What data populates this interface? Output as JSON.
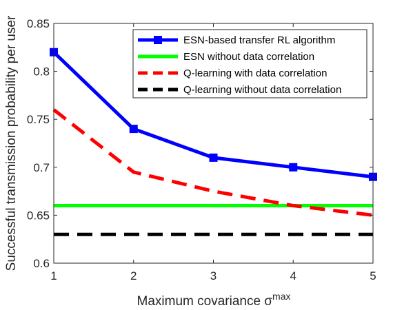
{
  "chart_data": {
    "type": "line",
    "x": [
      1,
      2,
      3,
      4,
      5
    ],
    "xlim": [
      1,
      5
    ],
    "ylim": [
      0.6,
      0.85
    ],
    "x_ticks": [
      1,
      2,
      3,
      4,
      5
    ],
    "y_ticks": [
      0.6,
      0.65,
      0.7,
      0.75,
      0.8,
      0.85
    ],
    "x_tick_labels": [
      "1",
      "2",
      "3",
      "4",
      "5"
    ],
    "y_tick_labels": [
      "0.6",
      "0.65",
      "0.7",
      "0.75",
      "0.8",
      "0.85"
    ],
    "xlabel": "Maximum covariance σ",
    "xlabel_superscript": "max",
    "ylabel": "Successful transmission probability per user",
    "grid": false,
    "legend_position": "top-right",
    "series": [
      {
        "name": "ESN-based transfer RL algorithm",
        "values": [
          0.82,
          0.74,
          0.71,
          0.7,
          0.69
        ],
        "color": "#0000ff",
        "style": "solid",
        "marker": "square"
      },
      {
        "name": "ESN without data correlation",
        "values": [
          0.66,
          0.66,
          0.66,
          0.66,
          0.66
        ],
        "color": "#00ff00",
        "style": "solid",
        "marker": "none"
      },
      {
        "name": "Q-learning with data correlation",
        "values": [
          0.76,
          0.695,
          0.675,
          0.66,
          0.65
        ],
        "color": "#ff0000",
        "style": "dashed",
        "marker": "none"
      },
      {
        "name": "Q-learning without data correlation",
        "values": [
          0.63,
          0.63,
          0.63,
          0.63,
          0.63
        ],
        "color": "#000000",
        "style": "dashed",
        "marker": "none"
      }
    ]
  }
}
